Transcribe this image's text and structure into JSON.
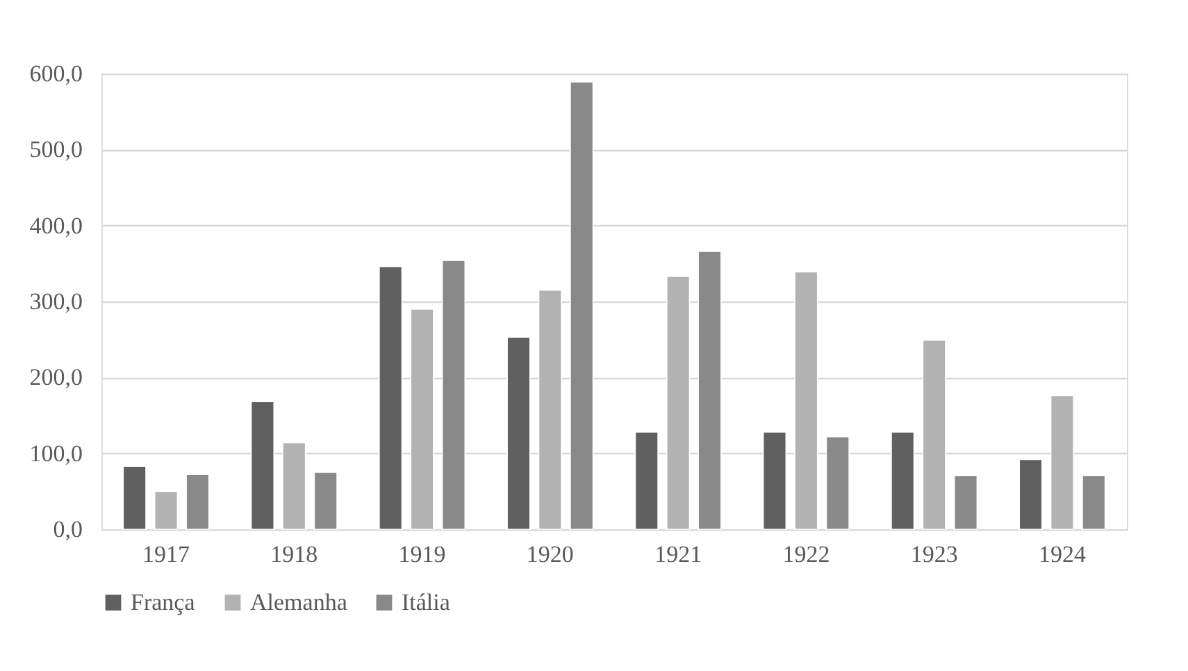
{
  "chart_data": {
    "type": "bar",
    "categories": [
      "1917",
      "1918",
      "1919",
      "1920",
      "1921",
      "1922",
      "1923",
      "1924"
    ],
    "series": [
      {
        "name": "França",
        "color": "#606060",
        "values": [
          83,
          168,
          346,
          253,
          128,
          128,
          128,
          92
        ]
      },
      {
        "name": "Alemanha",
        "color": "#b2b2b2",
        "values": [
          50,
          114,
          290,
          315,
          333,
          339,
          249,
          176
        ]
      },
      {
        "name": "Itália",
        "color": "#898989",
        "values": [
          72,
          75,
          354,
          589,
          366,
          122,
          71,
          71
        ]
      }
    ],
    "ylim": [
      0,
      600
    ],
    "yticks": [
      {
        "value": 0,
        "label": "0,0"
      },
      {
        "value": 100,
        "label": "100,0"
      },
      {
        "value": 200,
        "label": "200,0"
      },
      {
        "value": 300,
        "label": "300,0"
      },
      {
        "value": 400,
        "label": "400,0"
      },
      {
        "value": 500,
        "label": "500,0"
      },
      {
        "value": 600,
        "label": "600,0"
      }
    ],
    "grid": "y",
    "legend": "bottom"
  }
}
